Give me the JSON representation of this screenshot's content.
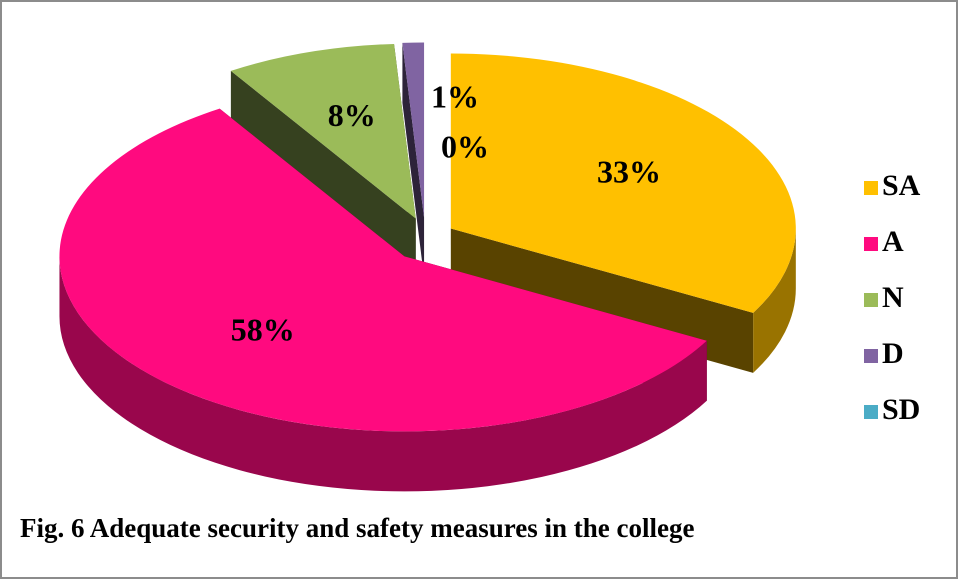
{
  "chart_data": {
    "type": "pie3d",
    "title": "Fig. 6 Adequate security and safety measures in the college",
    "categories": [
      "SA",
      "A",
      "N",
      "D",
      "SD"
    ],
    "values": [
      33,
      58,
      8,
      1,
      0
    ],
    "value_labels": [
      "33%",
      "58%",
      "8%",
      "1%",
      "0%"
    ],
    "colors": [
      "#ffc000",
      "#ff0a7f",
      "#9bbb59",
      "#8064a2",
      "#4bacc6"
    ],
    "legend": "right"
  }
}
